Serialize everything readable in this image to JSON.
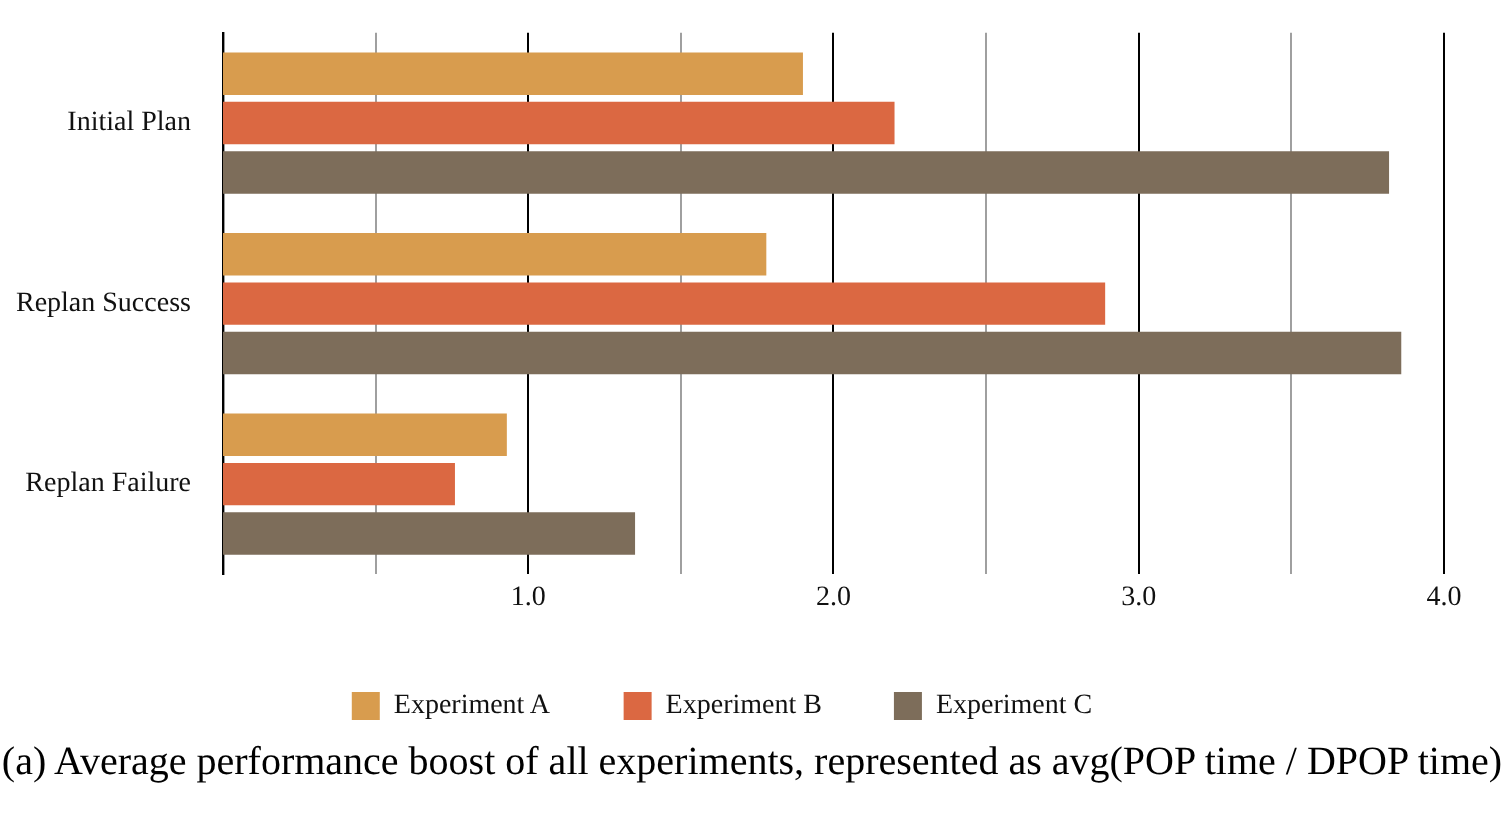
{
  "chart_data": {
    "type": "bar",
    "orientation": "horizontal",
    "title": "(a) Average performance boost of all experiments, represented as avg(POP time / DPOP time)",
    "categories": [
      "Initial Plan",
      "Replan Success",
      "Replan Failure"
    ],
    "series": [
      {
        "name": "Experiment A",
        "color": "#d89c4e",
        "values": [
          1.9,
          1.78,
          0.93
        ]
      },
      {
        "name": "Experiment B",
        "color": "#db6842",
        "values": [
          2.2,
          2.89,
          0.76
        ]
      },
      {
        "name": "Experiment C",
        "color": "#7d6d5a",
        "values": [
          3.82,
          3.86,
          1.35
        ]
      }
    ],
    "xlim": [
      0,
      4
    ],
    "xticks": [
      {
        "value": 0.5,
        "label": null
      },
      {
        "value": 1,
        "label": "1.0"
      },
      {
        "value": 1.5,
        "label": null
      },
      {
        "value": 2,
        "label": "2.0"
      },
      {
        "value": 2.5,
        "label": null
      },
      {
        "value": 3,
        "label": "3.0"
      },
      {
        "value": 3.5,
        "label": null
      },
      {
        "value": 4,
        "label": "4.0"
      }
    ],
    "grid": "x",
    "legend": "bottom"
  }
}
